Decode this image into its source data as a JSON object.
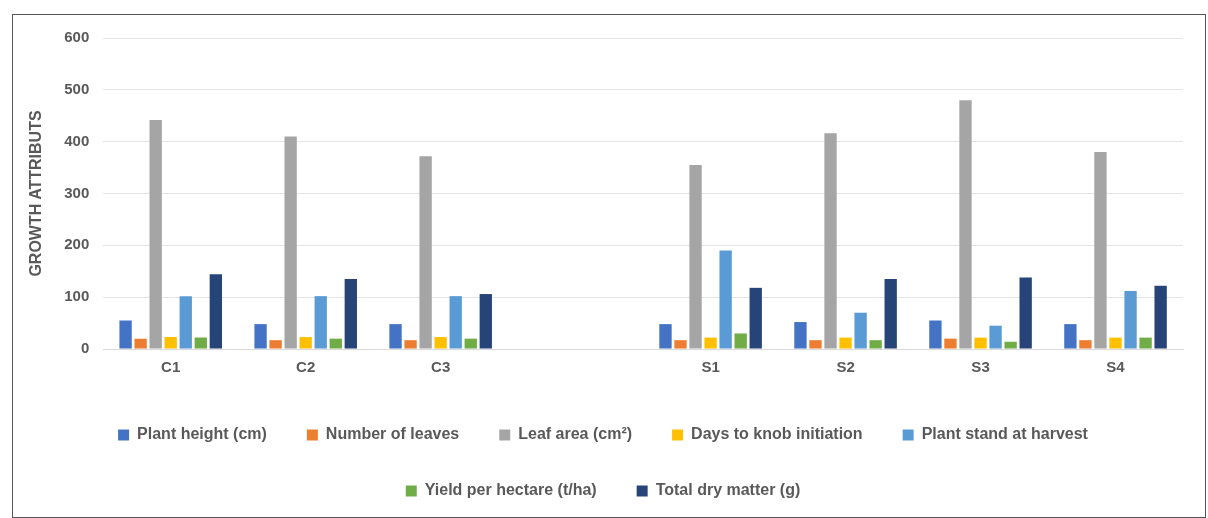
{
  "chart_data": {
    "type": "bar",
    "ylabel": "GROWTH ATTRIBUTS",
    "categories": [
      "C1",
      "C2",
      "C3",
      null,
      "S1",
      "S2",
      "S3",
      "S4"
    ],
    "series": [
      {
        "name": "Plant height (cm)",
        "color": "#4472c4",
        "values": [
          55,
          48,
          48,
          null,
          48,
          52,
          55,
          48
        ]
      },
      {
        "name": "Number of leaves",
        "color": "#ed7d31",
        "values": [
          20,
          17,
          17,
          null,
          17,
          17,
          20,
          17
        ]
      },
      {
        "name": "Leaf area (cm²)",
        "color": "#a5a5a5",
        "values": [
          442,
          410,
          372,
          null,
          355,
          416,
          480,
          380
        ]
      },
      {
        "name": "Days to knob initiation",
        "color": "#ffc000",
        "values": [
          23,
          23,
          23,
          null,
          22,
          22,
          22,
          22
        ]
      },
      {
        "name": "Plant stand at harvest",
        "color": "#5b9bd5",
        "values": [
          102,
          102,
          102,
          null,
          190,
          70,
          45,
          112
        ]
      },
      {
        "name": "Yield per hectare (t/ha)",
        "color": "#70ad47",
        "values": [
          22,
          20,
          20,
          null,
          30,
          17,
          14,
          22
        ]
      },
      {
        "name": "Total dry matter (g)",
        "color": "#264478",
        "values": [
          144,
          135,
          106,
          null,
          118,
          135,
          138,
          122
        ]
      }
    ],
    "ylim": [
      0,
      600
    ],
    "yticks": [
      0,
      100,
      200,
      300,
      400,
      500,
      600
    ],
    "grid": "y",
    "legend": "bottom"
  }
}
